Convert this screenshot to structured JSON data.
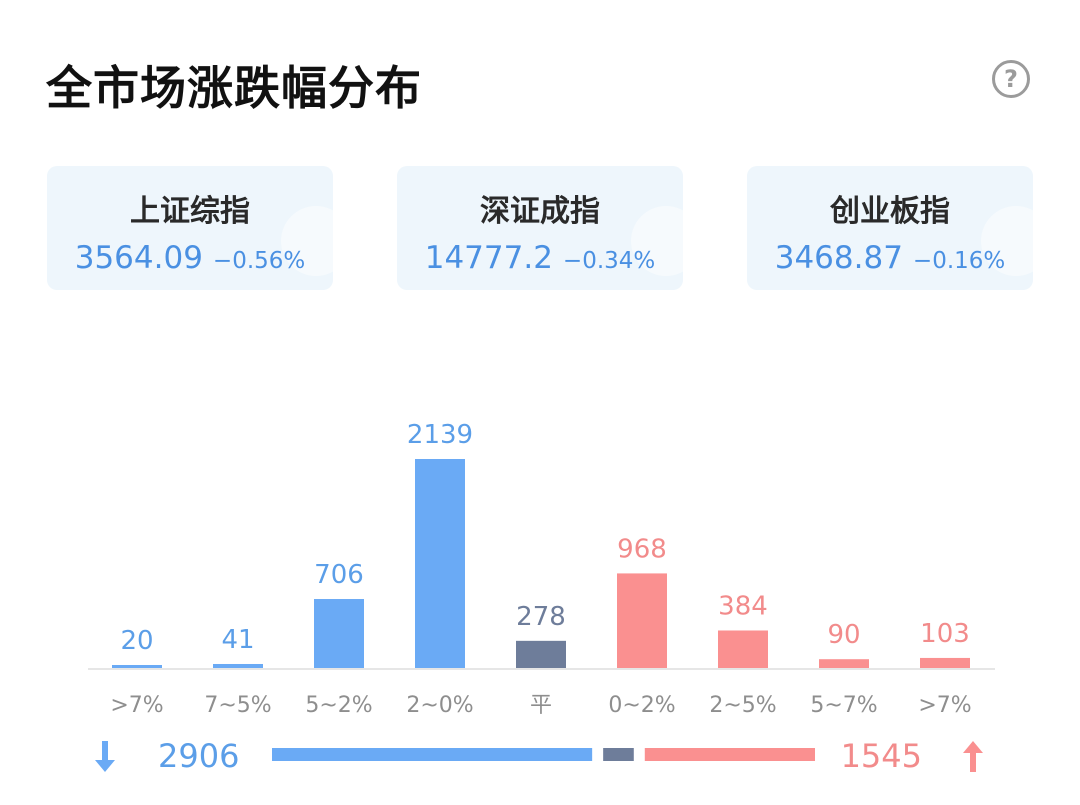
{
  "title": "全市场涨跌幅分布",
  "help_icon": "?",
  "indices": [
    {
      "name": "上证综指",
      "price": "3564.09",
      "change": "−0.56%"
    },
    {
      "name": "深证成指",
      "price": "14777.2",
      "change": "−0.34%"
    },
    {
      "name": "创业板指",
      "price": "3468.87",
      "change": "−0.16%"
    }
  ],
  "colors": {
    "down": "#6aaaf5",
    "flat": "#6e7d9a",
    "up": "#fa9090",
    "down_text": "#5b9ee8",
    "up_text": "#f28b8b"
  },
  "chart_data": {
    "type": "bar",
    "categories": [
      ">7%",
      "7~5%",
      "5~2%",
      "2~0%",
      "平",
      "0~2%",
      "2~5%",
      "5~7%",
      ">7%"
    ],
    "values": [
      20,
      41,
      706,
      2139,
      278,
      968,
      384,
      90,
      103
    ],
    "groups": [
      "down",
      "down",
      "down",
      "down",
      "flat",
      "up",
      "up",
      "up",
      "up"
    ],
    "ylim": [
      0,
      2139
    ]
  },
  "summary": {
    "down_icon": "down-arrow-icon",
    "down_count": "2906",
    "up_icon": "up-arrow-icon",
    "up_count": "1545"
  }
}
